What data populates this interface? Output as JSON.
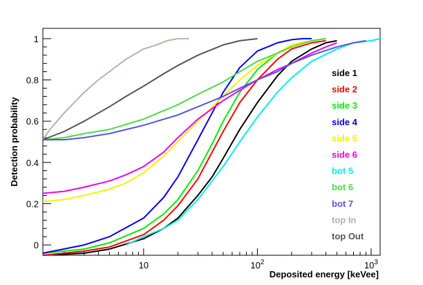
{
  "chart_data": {
    "type": "line",
    "title": "",
    "xlabel": "Deposited energy [keVee]",
    "ylabel": "Detection probability",
    "xscale": "log",
    "xlim": [
      1.3,
      1200
    ],
    "ylim": [
      -0.05,
      1.05
    ],
    "x_tick_labels": [
      {
        "value": 10,
        "text": "10"
      },
      {
        "value": 100,
        "text": "10^2"
      },
      {
        "value": 1000,
        "text": "10^3"
      }
    ],
    "y_ticks": [
      0,
      0.2,
      0.4,
      0.6,
      0.8,
      1
    ],
    "y_tick_labels": [
      "0",
      "0.2",
      "0.4",
      "0.6",
      "0.8",
      "1"
    ],
    "grid": false,
    "legend_position": "right",
    "series": [
      {
        "name": "side 1",
        "color": "#000000",
        "x": [
          1.3,
          3,
          5,
          10,
          15,
          20,
          30,
          40,
          50,
          70,
          100,
          150,
          200,
          300,
          400,
          500
        ],
        "y": [
          -0.05,
          -0.04,
          -0.02,
          0.03,
          0.08,
          0.13,
          0.24,
          0.33,
          0.42,
          0.56,
          0.69,
          0.82,
          0.89,
          0.95,
          0.98,
          0.99
        ]
      },
      {
        "name": "side 2",
        "color": "#ff0000",
        "x": [
          1.3,
          3,
          5,
          10,
          15,
          20,
          30,
          40,
          50,
          70,
          100,
          150,
          200,
          300,
          400
        ],
        "y": [
          -0.05,
          -0.03,
          -0.01,
          0.05,
          0.12,
          0.19,
          0.32,
          0.45,
          0.55,
          0.69,
          0.8,
          0.9,
          0.95,
          0.98,
          0.99
        ]
      },
      {
        "name": "side 3",
        "color": "#00ee00",
        "x": [
          1.3,
          3,
          5,
          10,
          15,
          20,
          30,
          40,
          50,
          70,
          100,
          150,
          200,
          300,
          400
        ],
        "y": [
          -0.04,
          -0.02,
          0.01,
          0.08,
          0.15,
          0.22,
          0.36,
          0.49,
          0.6,
          0.74,
          0.85,
          0.93,
          0.97,
          0.99,
          1.0
        ]
      },
      {
        "name": "side 4",
        "color": "#0000ee",
        "x": [
          1.3,
          3,
          5,
          10,
          15,
          20,
          30,
          40,
          50,
          70,
          100,
          150,
          200,
          250,
          300
        ],
        "y": [
          -0.04,
          0.0,
          0.04,
          0.13,
          0.23,
          0.33,
          0.51,
          0.64,
          0.74,
          0.86,
          0.94,
          0.98,
          0.995,
          1.0,
          1.0
        ]
      },
      {
        "name": "side 5",
        "color": "#ffee00",
        "x": [
          1.3,
          2,
          3,
          5,
          7,
          10,
          15,
          20,
          30,
          50,
          70,
          100,
          150,
          200,
          300
        ],
        "y": [
          0.21,
          0.22,
          0.24,
          0.27,
          0.3,
          0.35,
          0.43,
          0.5,
          0.6,
          0.72,
          0.8,
          0.87,
          0.93,
          0.97,
          0.99
        ]
      },
      {
        "name": "side 6",
        "color": "#ee00ee",
        "x": [
          1.3,
          2,
          3,
          5,
          7,
          10,
          15,
          20,
          30,
          50,
          70,
          100,
          150,
          200,
          300,
          400,
          500
        ],
        "y": [
          0.25,
          0.26,
          0.28,
          0.31,
          0.34,
          0.38,
          0.45,
          0.52,
          0.61,
          0.7,
          0.75,
          0.8,
          0.85,
          0.88,
          0.93,
          0.96,
          0.98
        ]
      },
      {
        "name": "bot 5",
        "color": "#00eeee",
        "x": [
          7,
          10,
          15,
          20,
          30,
          50,
          70,
          100,
          150,
          200,
          300,
          500,
          700,
          1000,
          1200
        ],
        "y": [
          0.0,
          0.04,
          0.08,
          0.12,
          0.22,
          0.38,
          0.5,
          0.62,
          0.74,
          0.81,
          0.89,
          0.95,
          0.98,
          0.99,
          1.0
        ]
      },
      {
        "name": "bot 6",
        "color": "#44dd44",
        "x": [
          1.3,
          2,
          3,
          5,
          10,
          20,
          30,
          50,
          70,
          100,
          150,
          200,
          300,
          400
        ],
        "y": [
          0.51,
          0.52,
          0.54,
          0.56,
          0.61,
          0.68,
          0.73,
          0.79,
          0.84,
          0.89,
          0.93,
          0.96,
          0.99,
          1.0
        ]
      },
      {
        "name": "bot 7",
        "color": "#5555dd",
        "x": [
          1.3,
          2,
          3,
          5,
          10,
          20,
          30,
          50,
          70,
          100,
          150,
          200,
          300,
          500,
          700,
          900
        ],
        "y": [
          0.51,
          0.51,
          0.52,
          0.54,
          0.58,
          0.63,
          0.67,
          0.72,
          0.76,
          0.8,
          0.84,
          0.88,
          0.92,
          0.96,
          0.98,
          0.99
        ]
      },
      {
        "name": "top In",
        "color": "#bbb0a8",
        "x": [
          1.3,
          1.5,
          2,
          3,
          4,
          5,
          7,
          10,
          13,
          16,
          20,
          25
        ],
        "y": [
          0.51,
          0.56,
          0.64,
          0.74,
          0.8,
          0.84,
          0.9,
          0.95,
          0.97,
          0.99,
          1.0,
          1.0
        ]
      },
      {
        "name": "top Out",
        "color": "#555555",
        "x": [
          1.3,
          2,
          3,
          5,
          7,
          10,
          15,
          20,
          30,
          50,
          70,
          100
        ],
        "y": [
          0.51,
          0.55,
          0.6,
          0.67,
          0.72,
          0.77,
          0.83,
          0.87,
          0.92,
          0.97,
          0.99,
          1.0
        ]
      }
    ]
  }
}
